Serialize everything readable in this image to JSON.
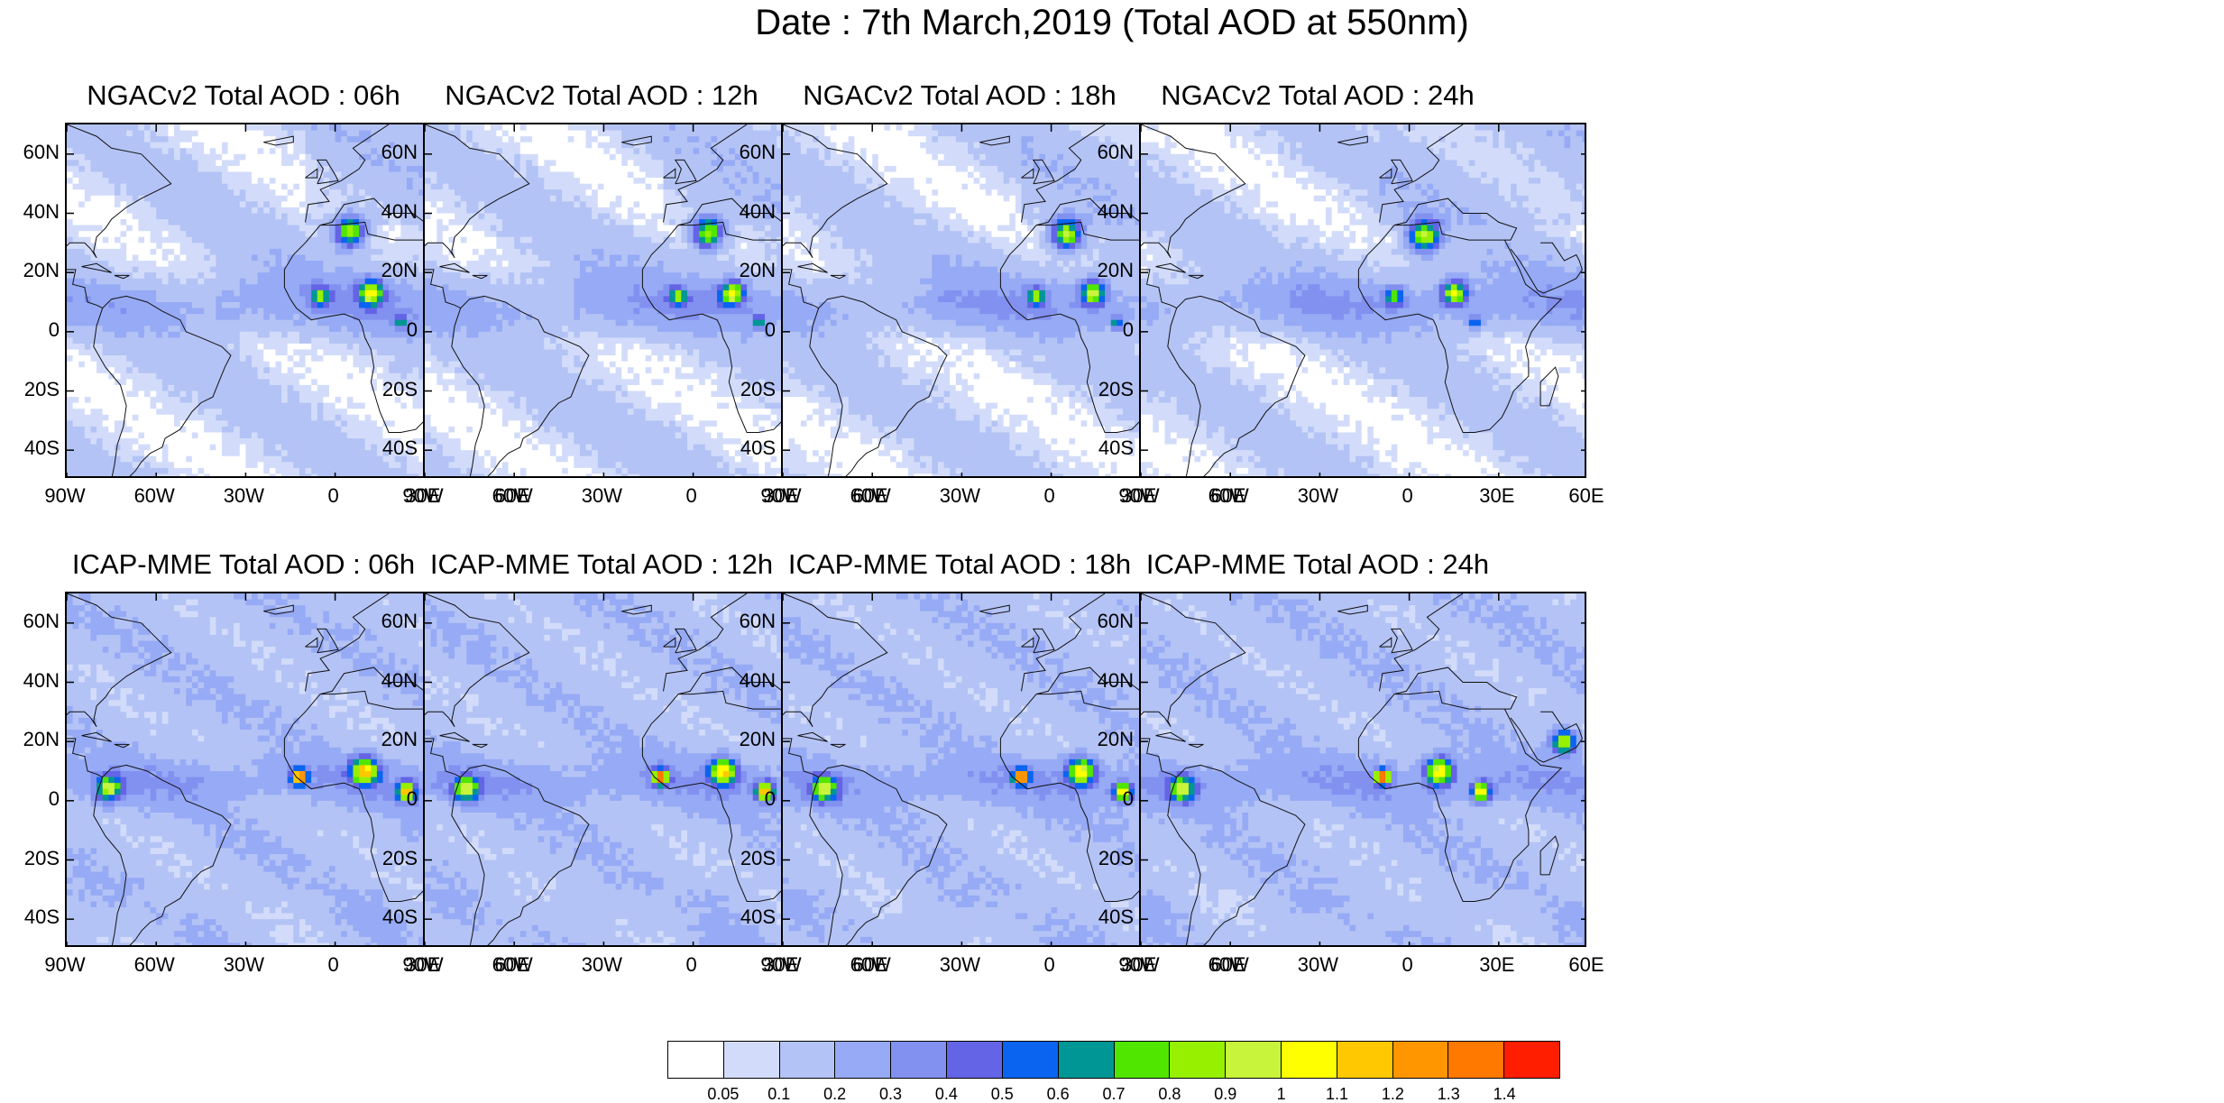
{
  "title": "Date : 7th March,2019 (Total AOD at 550nm)",
  "panels": [
    {
      "title": "NGACv2 Total AOD : 06h"
    },
    {
      "title": "NGACv2 Total AOD : 12h"
    },
    {
      "title": "NGACv2 Total AOD : 18h"
    },
    {
      "title": "NGACv2 Total AOD : 24h"
    },
    {
      "title": "ICAP-MME Total AOD : 06h"
    },
    {
      "title": "ICAP-MME Total AOD : 12h"
    },
    {
      "title": "ICAP-MME Total AOD : 18h"
    },
    {
      "title": "ICAP-MME Total AOD : 24h"
    }
  ],
  "lat_ticks": [
    "60N",
    "40N",
    "20N",
    "0",
    "20S",
    "40S"
  ],
  "lon_ticks": [
    "90W",
    "60W",
    "30W",
    "0",
    "30E",
    "60E"
  ],
  "map_extent": {
    "lon": [
      -90,
      60
    ],
    "lat": [
      -50,
      70
    ]
  },
  "colorbar": {
    "labels": [
      "0.05",
      "0.1",
      "0.2",
      "0.3",
      "0.4",
      "0.5",
      "0.6",
      "0.7",
      "0.8",
      "0.9",
      "1",
      "1.1",
      "1.2",
      "1.3",
      "1.4"
    ],
    "colors": [
      "#ffffff",
      "#d2dcfa",
      "#b4c3f5",
      "#96aaf5",
      "#8291f0",
      "#6464e6",
      "#0a64f0",
      "#009696",
      "#50e600",
      "#96f000",
      "#c8f53c",
      "#ffff00",
      "#ffc800",
      "#ff9600",
      "#ff7800",
      "#ff1e00"
    ]
  }
}
